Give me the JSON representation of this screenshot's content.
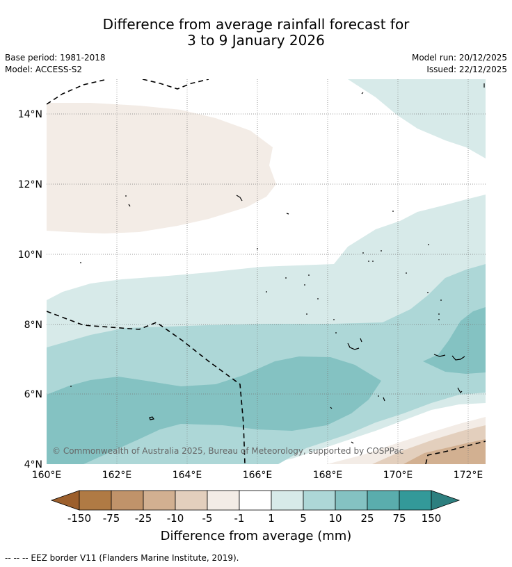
{
  "title_line1": "Difference from average rainfall forecast for",
  "title_line2": "3 to 9 January 2026",
  "base_period": "Base period: 1981-2018",
  "model": "Model: ACCESS-S2",
  "model_run": "Model run: 20/12/2025",
  "issued": "Issued: 22/12/2025",
  "copyright": "© Commonwealth of Australia 2025, Bureau of Meteorology, supported by COSPPac",
  "lat_labels": [
    "14°N",
    "12°N",
    "10°N",
    "8°N",
    "6°N",
    "4°N"
  ],
  "lon_labels": [
    "160°E",
    "162°E",
    "164°E",
    "166°E",
    "168°E",
    "170°E",
    "172°E"
  ],
  "colorbar": {
    "title": "Difference from average (mm)",
    "tick_labels": [
      "-150",
      "-75",
      "-25",
      "-10",
      "-5",
      "-1",
      "1",
      "5",
      "10",
      "25",
      "75",
      "150"
    ],
    "colors": [
      "#9c5f2c",
      "#b07a44",
      "#c0936a",
      "#d2b091",
      "#e3cfbd",
      "#f3ece6",
      "#ffffff",
      "#d7eae9",
      "#add7d7",
      "#84c2c2",
      "#5aadad",
      "#339999",
      "#2d7f7f"
    ]
  },
  "footnote": "--  --  -- EEZ border V11 (Flanders Marine Institute, 2019)."
}
